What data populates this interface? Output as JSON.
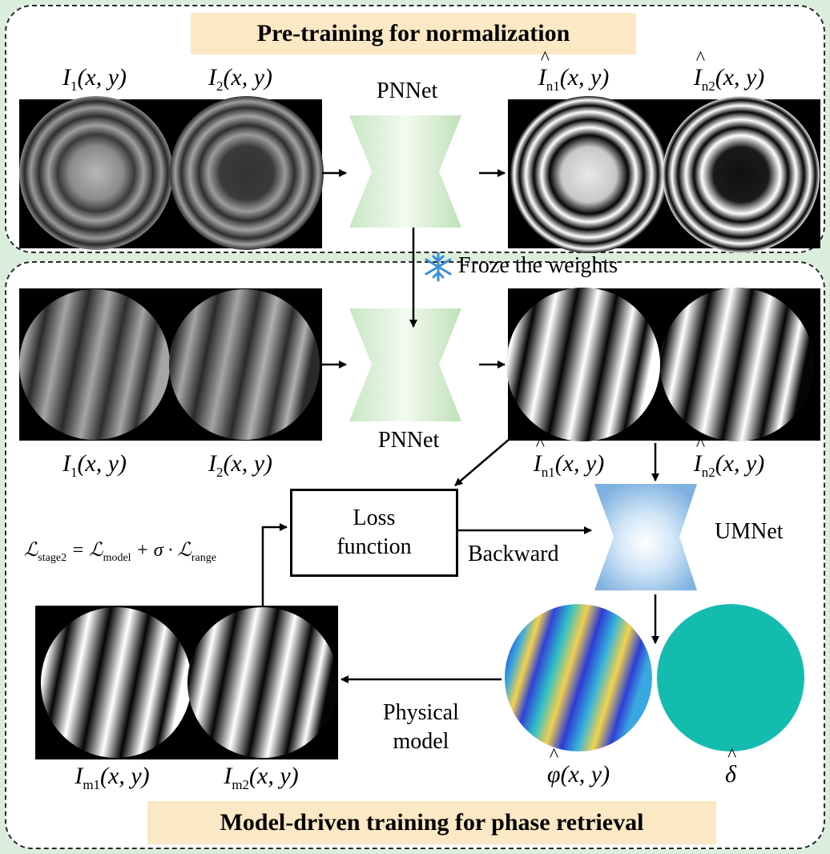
{
  "top_banner": "Pre-training for normalization",
  "bottom_banner": "Model-driven training for phase retrieval",
  "network_names": {
    "pnnet_top": "PNNet",
    "pnnet_bottom": "PNNet",
    "umnet": "UMNet"
  },
  "freeze_note": "Froze the weights",
  "loss_box": {
    "line1": "Loss",
    "line2": "function"
  },
  "backward_label": "Backward",
  "physical_model": {
    "line1": "Physical",
    "line2": "model"
  },
  "symbols": {
    "I_base": "I",
    "I_hat_base": "I",
    "I_m_base": "I",
    "sub1": "1",
    "sub2": "2",
    "sub_n1": "n1",
    "sub_n2": "n2",
    "sub_m1": "m1",
    "sub_m2": "m2",
    "args": "(x, y)",
    "phi": "φ",
    "delta": "δ"
  },
  "loss_equation": {
    "lhs": "ℒ",
    "lhs_sub": "stage2",
    "eq": " = ",
    "t1": "ℒ",
    "t1_sub": "model",
    "plus": " + σ · ",
    "t2": "ℒ",
    "t2_sub": "range"
  },
  "colors": {
    "panel_bg": "#ffffff",
    "outer_bg": "#d9efdb",
    "banner_bg": "#fbe8c4",
    "pnnet_green": "#cfe9c9",
    "umnet_blue": "#8fbde6",
    "delta_teal": "#14bcb0",
    "snowflake": "#3a8fd9"
  }
}
